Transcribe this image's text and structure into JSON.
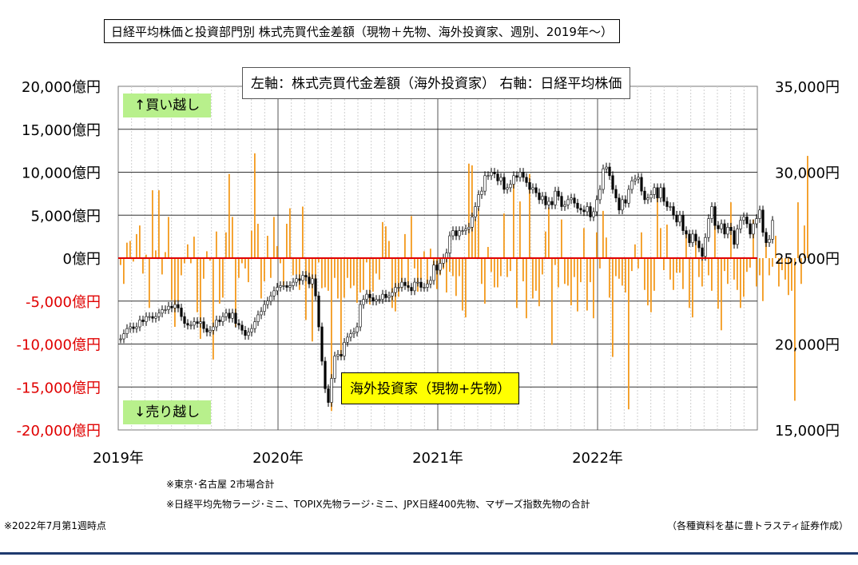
{
  "title": "日経平均株価と投資部門別 株式売買代金差額（現物＋先物、海外投資家、週別、2019年～）",
  "legend_text": "左軸：株式売買代金差額（海外投資家） 右軸：日経平均株価",
  "buy_label": "↑買い越し",
  "sell_label": "↓売り越し",
  "series_label": "海外投資家（現物+先物）",
  "notes": {
    "note1": "※東京･名古屋 2市場合計",
    "note2": "※日経平均先物ラージ･ミニ、TOPIX先物ラージ･ミニ、JPX日経400先物、マザーズ指数先物の合計",
    "note3": "※2022年7月第1週時点",
    "source": "（各種資料を基に豊トラスティ証券作成）"
  },
  "colors": {
    "bar": "#f39a1e",
    "zero_line": "#e00000",
    "candle": "#000000",
    "green_label": "#b8f08c",
    "series_label_bg": "#ffff00",
    "negative_tick": "#e00000"
  },
  "chart_data": {
    "type": "bar+line",
    "left_axis": {
      "ylim": [
        -20000,
        20000
      ],
      "ticks": [
        20000,
        15000,
        10000,
        5000,
        0,
        -5000,
        -10000,
        -15000,
        -20000
      ],
      "tick_labels": [
        "20,000億円",
        "15,000億円",
        "10,000億円",
        "5,000億円",
        "0億円",
        "-5,000億円",
        "-10,000億円",
        "-15,000億円",
        "-20,000億円"
      ]
    },
    "right_axis": {
      "ylim": [
        15000,
        35000
      ],
      "ticks": [
        35000,
        30000,
        25000,
        20000,
        15000
      ],
      "tick_labels": [
        "35,000円",
        "30,000円",
        "25,000円",
        "20,000円",
        "15,000円"
      ]
    },
    "x_axis": {
      "start": "2019-01",
      "end": "2022-12",
      "year_labels": [
        "2019年",
        "2020年",
        "2021年",
        "2022年"
      ]
    },
    "grid": true,
    "foreign_investors_weekly_net_oku_yen": [
      -800,
      -3000,
      1800,
      2000,
      -400,
      2800,
      3800,
      -1800,
      400,
      -5800,
      7900,
      900,
      7900,
      -1900,
      700,
      4800,
      -4900,
      -8000,
      -5000,
      -2000,
      -600,
      1600,
      -600,
      2500,
      -6300,
      -9400,
      -2400,
      800,
      -300,
      -11800,
      3100,
      -5300,
      -4600,
      3000,
      9800,
      4800,
      -8000,
      -2300,
      -600,
      -1200,
      -2800,
      3200,
      12200,
      4000,
      -4700,
      -2700,
      2600,
      -2300,
      4800,
      1400,
      -600,
      -3200,
      4000,
      5800,
      -2000,
      -1900,
      -3700,
      6000,
      -7200,
      -2200,
      -9700,
      -2700,
      -500,
      -3500,
      -3400,
      -3800,
      -17800,
      -2300,
      -4700,
      -11500,
      -4600,
      -2300,
      -3500,
      -3200,
      -5200,
      -4000,
      -3700,
      -500,
      -5400,
      -3900,
      -1800,
      -2500,
      4200,
      3700,
      2000,
      -5800,
      -6200,
      -4500,
      -3500,
      2800,
      -3500,
      4900,
      -1200,
      -3900,
      -2500,
      800,
      -3400,
      1100,
      -900,
      -3600,
      -2000,
      -1300,
      -4000,
      -1600,
      -2100,
      -4400,
      -2100,
      -6100,
      -6900,
      11000,
      10800,
      4600,
      5800,
      -3000,
      -5300,
      1300,
      -1600,
      -3400,
      -3400,
      -2100,
      5200,
      -2200,
      -1500,
      8600,
      -5800,
      6600,
      -2700,
      -7000,
      9800,
      -4700,
      -3800,
      -5600,
      -1900,
      3100,
      5900,
      -10100,
      -800,
      -3400,
      4500,
      -3000,
      -3200,
      -5500,
      -2200,
      -6200,
      -2800,
      3500,
      -6100,
      -2800,
      -7000,
      3000,
      -1200,
      5500,
      2400,
      -4600,
      -11500,
      -2100,
      -2400,
      -3200,
      -4000,
      -17600,
      -1500,
      1600,
      -1200,
      3000,
      -3700,
      -5500,
      -6300,
      -3800,
      7000,
      3500,
      -1400,
      3900,
      -2500,
      -3700,
      -1700,
      -1700,
      -3600,
      2900,
      -5800,
      -6900,
      2700,
      -2200,
      -3300,
      1300,
      -2000,
      -3800,
      4400,
      -5900,
      -8400,
      -1500,
      -3000,
      6500,
      -2500,
      -3700,
      -5800,
      -4500,
      -1600,
      -1100,
      4500,
      -3300,
      -2000,
      -5000,
      3000,
      -2000,
      -1000,
      2600,
      -3300,
      -1400,
      -2500,
      -4300,
      -3800,
      -16600,
      6500,
      -3000,
      3800,
      11900
    ],
    "nikkei_weekly_close_yen": [
      20300,
      20600,
      20900,
      21000,
      20900,
      21000,
      21400,
      21300,
      21600,
      21600,
      21500,
      21600,
      21800,
      22000,
      22000,
      22200,
      22100,
      22300,
      22100,
      21600,
      21200,
      21100,
      21100,
      21300,
      21200,
      21300,
      20900,
      20700,
      20800,
      21000,
      21400,
      21300,
      21600,
      21800,
      21500,
      21800,
      21200,
      21100,
      20800,
      20500,
      20700,
      20900,
      21300,
      21700,
      21900,
      22300,
      22500,
      22800,
      23100,
      23300,
      23400,
      23400,
      23300,
      23400,
      23600,
      23800,
      23700,
      24000,
      23900,
      23500,
      23800,
      22800,
      21000,
      19000,
      17400,
      16600,
      18000,
      19300,
      19400,
      19300,
      20100,
      20400,
      20600,
      20700,
      21000,
      22300,
      22600,
      22900,
      22700,
      22500,
      22600,
      22600,
      22900,
      22700,
      22800,
      23000,
      23300,
      23300,
      23600,
      23400,
      23300,
      23100,
      23600,
      23600,
      23300,
      23300,
      23500,
      23700,
      24600,
      24300,
      24700,
      25000,
      25300,
      26300,
      26600,
      26300,
      26600,
      26600,
      26700,
      26800,
      27400,
      28000,
      28700,
      28900,
      29800,
      29800,
      30000,
      29900,
      29500,
      29700,
      29000,
      29100,
      29300,
      29800,
      29700,
      30000,
      29700,
      29400,
      29000,
      29100,
      28800,
      28400,
      28600,
      28100,
      28300,
      28100,
      28900,
      28600,
      28000,
      28100,
      28400,
      28500,
      28200,
      27900,
      27800,
      27700,
      28000,
      27400,
      27700,
      28400,
      29000,
      30200,
      30300,
      29800,
      29000,
      28500,
      27800,
      28400,
      28200,
      29000,
      29500,
      29600,
      29700,
      28900,
      28400,
      28500,
      28700,
      29100,
      28500,
      29100,
      28300,
      28000,
      28000,
      27500,
      27100,
      27500,
      26600,
      26400,
      25900,
      26400,
      26000,
      25600,
      25100,
      26200,
      27300,
      28000,
      26900,
      26700,
      27000,
      26400,
      26800,
      26600,
      25800,
      26700,
      27200,
      27400,
      27000,
      26400,
      27000,
      27300,
      27800,
      26500,
      25900,
      26100,
      27200
    ],
    "series": [
      {
        "name": "海外投資家（現物+先物）",
        "type": "bar",
        "axis": "left"
      },
      {
        "name": "日経平均株価",
        "type": "candlestick",
        "axis": "right"
      }
    ]
  }
}
